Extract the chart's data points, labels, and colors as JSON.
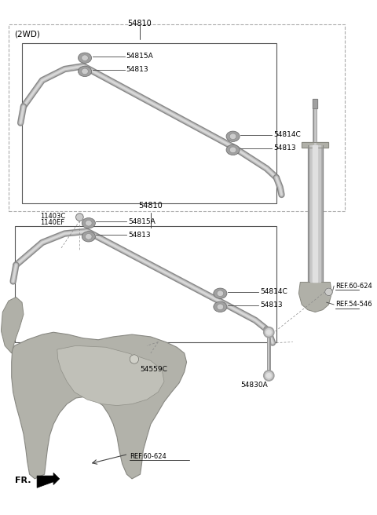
{
  "bg_color": "#ffffff",
  "text_color": "#000000",
  "bar_dark": "#909090",
  "bar_mid": "#b8b8b8",
  "bar_light": "#d0d0d0",
  "clip_color": "#a0a0a0",
  "subframe_color": "#b0b0aa",
  "labels": {
    "2wd": "(2WD)",
    "54810_top": "54810",
    "54810_mid": "54810",
    "54815A_top": "54815A",
    "54813_top1": "54813",
    "54814C_top": "54814C",
    "54813_top2": "54813",
    "11403C": "11403C",
    "1140EF": "1140EF",
    "54815A_bot": "54815A",
    "54813_bot1": "54813",
    "54814C_bot": "54814C",
    "54813_bot2": "54813",
    "54559C": "54559C",
    "54830A": "54830A",
    "ref60624_bot": "REF.60-624",
    "ref60624_right": "REF.60-624",
    "ref54546": "REF.54-546",
    "FR": "FR."
  }
}
